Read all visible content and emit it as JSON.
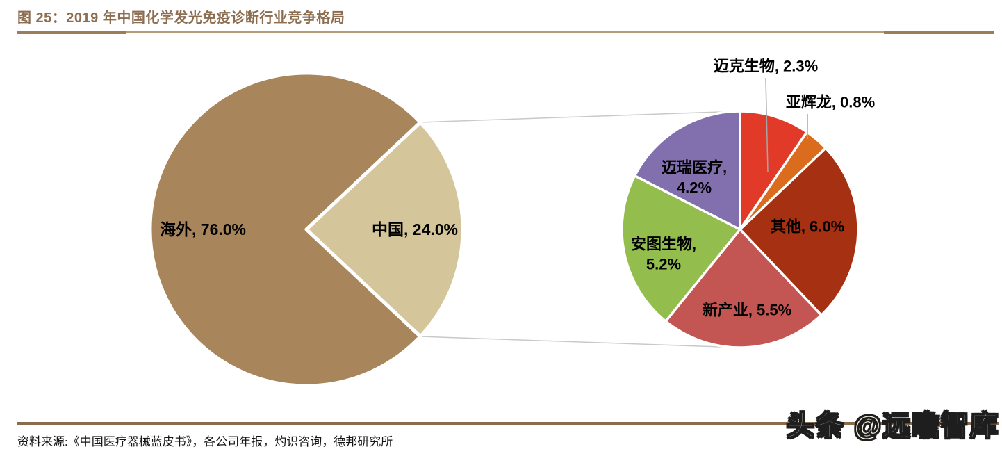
{
  "figure": {
    "title": "图 25：2019 年中国化学发光免疫诊断行业竞争格局",
    "source": "资料来源:《中国医疗器械蓝皮书》，各公司年报，灼识咨询，德邦研究所",
    "watermark": "头条 @远瞻智库"
  },
  "colors": {
    "title_brown": "#8C6D50",
    "rule_thick": "#9B7C5B",
    "rule_thin": "#B59B79",
    "bottom_rule": "#8A6B4E",
    "connector_gray": "#C9C9C9",
    "leader_gray": "#A6A6A6",
    "slice_border": "#FFFFFF"
  },
  "chart_data": {
    "type": "pie",
    "subtype": "pie-of-pie",
    "title": "2019 年中国化学发光免疫诊断行业竞争格局",
    "legend_position": "none",
    "main_pie": {
      "total": 100,
      "slices": [
        {
          "label": "海外",
          "value": 76.0,
          "color": "#A8855B",
          "expanded": false
        },
        {
          "label": "中国",
          "value": 24.0,
          "color": "#D4C59A",
          "expanded": true
        }
      ]
    },
    "secondary_pie": {
      "parent_slice": "中国",
      "total": 24.0,
      "slices": [
        {
          "label": "迈克生物",
          "value": 2.3,
          "color": "#E23A28"
        },
        {
          "label": "亚辉龙",
          "value": 0.8,
          "color": "#DB6C1E"
        },
        {
          "label": "其他",
          "value": 6.0,
          "color": "#A63012"
        },
        {
          "label": "新产业",
          "value": 5.5,
          "color": "#C35553"
        },
        {
          "label": "安图生物",
          "value": 5.2,
          "color": "#93BE4D"
        },
        {
          "label": "迈瑞医疗",
          "value": 4.2,
          "color": "#8270AE"
        }
      ]
    }
  },
  "labels": {
    "overseas": "海外, 76.0%",
    "china": "中国, 24.0%",
    "maccura": "迈克生物, 2.3%",
    "yhlo": "亚辉龙, 0.8%",
    "others": "其他, 6.0%",
    "snibe": "新产业, 5.5%",
    "autobio_line1": "安图生物,",
    "autobio_line2": "5.2%",
    "mindray_line1": "迈瑞医疗,",
    "mindray_line2": "4.2%"
  }
}
